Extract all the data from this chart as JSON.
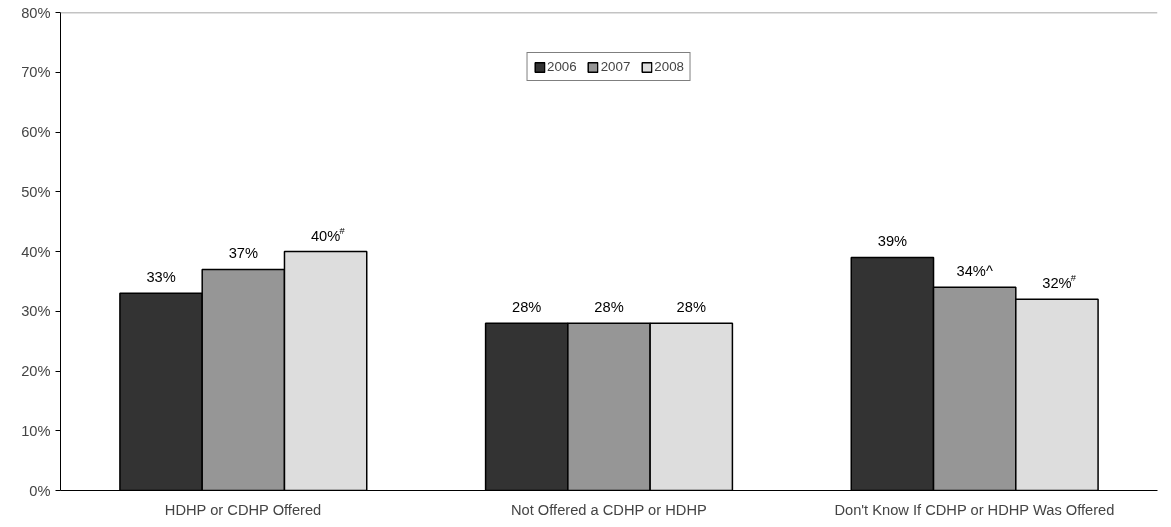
{
  "chart_data": {
    "type": "bar",
    "categories": [
      "HDHP or CDHP Offered",
      "Not Offered a CDHP or HDHP",
      "Don't Know If CDHP or HDHP Was Offered"
    ],
    "series": [
      {
        "name": "2006",
        "color": "#333333",
        "values": [
          33,
          28,
          39
        ],
        "value_labels": [
          "33%",
          "28%",
          "39%"
        ]
      },
      {
        "name": "2007",
        "color": "#969696",
        "values": [
          37,
          28,
          34
        ],
        "value_labels": [
          "37%",
          "28%",
          "34%^"
        ]
      },
      {
        "name": "2008",
        "color": "#dddddd",
        "values": [
          40,
          28,
          32
        ],
        "value_labels": [
          "40%$^{#}$",
          "28%",
          "32%$^{#}$"
        ]
      }
    ],
    "ylim": [
      0,
      80
    ],
    "yticks": [
      {
        "value": 0,
        "label": "0%"
      },
      {
        "value": 10,
        "label": "10%"
      },
      {
        "value": 20,
        "label": "20%"
      },
      {
        "value": 30,
        "label": "30%"
      },
      {
        "value": 40,
        "label": "40%"
      },
      {
        "value": 50,
        "label": "50%"
      },
      {
        "value": 60,
        "label": "60%"
      },
      {
        "value": 70,
        "label": "70%"
      },
      {
        "value": 80,
        "label": "80%"
      }
    ],
    "grid": false,
    "legend": "top"
  }
}
